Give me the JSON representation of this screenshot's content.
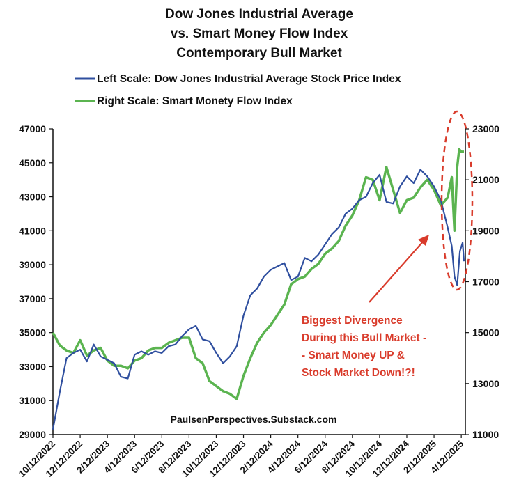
{
  "chart_data": {
    "type": "line",
    "title_lines": [
      "Dow Jones Industrial Average",
      "vs. Smart Money Flow Index",
      "Contemporary Bull Market"
    ],
    "legend": [
      {
        "label": "Left Scale: Dow Jones Industrial Average Stock Price Index",
        "color": "#2F4F9F"
      },
      {
        "label": "Right Scale: Smart Monety Flow Index",
        "color": "#5BB450"
      }
    ],
    "y_left": {
      "min": 29000,
      "max": 47000,
      "ticks": [
        "29000",
        "31000",
        "33000",
        "35000",
        "37000",
        "39000",
        "41000",
        "43000",
        "45000",
        "47000"
      ]
    },
    "y_right": {
      "min": 11000,
      "max": 23000,
      "ticks": [
        "11000",
        "13000",
        "15000",
        "17000",
        "19000",
        "21000",
        "23000"
      ]
    },
    "x_ticks": [
      "10/12/2022",
      "12/12/2022",
      "2/12/2023",
      "4/12/2023",
      "6/12/2023",
      "8/12/2023",
      "10/12/2023",
      "12/12/2023",
      "2/12/2024",
      "4/12/2024",
      "6/12/2024",
      "8/12/2024",
      "10/12/2024",
      "12/12/2024",
      "2/12/2025",
      "4/12/2025"
    ],
    "x_range": [
      0,
      30.3
    ],
    "series": [
      {
        "name": "Dow Jones Industrial Average",
        "axis": "left",
        "color": "#2F4F9F",
        "points": [
          [
            0,
            29300
          ],
          [
            0.5,
            31500
          ],
          [
            1,
            33500
          ],
          [
            1.5,
            33800
          ],
          [
            2,
            34000
          ],
          [
            2.5,
            33300
          ],
          [
            3,
            34300
          ],
          [
            3.5,
            33600
          ],
          [
            4,
            33400
          ],
          [
            4.5,
            33200
          ],
          [
            5,
            32400
          ],
          [
            5.5,
            32300
          ],
          [
            6,
            33700
          ],
          [
            6.5,
            33900
          ],
          [
            7,
            33700
          ],
          [
            7.5,
            33900
          ],
          [
            8,
            33800
          ],
          [
            8.5,
            34200
          ],
          [
            9,
            34300
          ],
          [
            9.5,
            34800
          ],
          [
            10,
            35200
          ],
          [
            10.5,
            35400
          ],
          [
            11,
            34600
          ],
          [
            11.5,
            34500
          ],
          [
            12,
            33800
          ],
          [
            12.5,
            33200
          ],
          [
            13,
            33600
          ],
          [
            13.5,
            34200
          ],
          [
            14,
            36000
          ],
          [
            14.5,
            37200
          ],
          [
            15,
            37600
          ],
          [
            15.5,
            38300
          ],
          [
            16,
            38700
          ],
          [
            16.5,
            38900
          ],
          [
            17,
            39100
          ],
          [
            17.5,
            38100
          ],
          [
            18,
            38300
          ],
          [
            18.5,
            39400
          ],
          [
            19,
            39200
          ],
          [
            19.5,
            39600
          ],
          [
            20,
            40200
          ],
          [
            20.5,
            40800
          ],
          [
            21,
            41200
          ],
          [
            21.5,
            42000
          ],
          [
            22,
            42300
          ],
          [
            22.5,
            42800
          ],
          [
            23,
            43000
          ],
          [
            23.5,
            43800
          ],
          [
            24,
            44300
          ],
          [
            24.5,
            42700
          ],
          [
            25,
            42600
          ],
          [
            25.5,
            43600
          ],
          [
            26,
            44200
          ],
          [
            26.5,
            43800
          ],
          [
            27,
            44600
          ],
          [
            27.5,
            44200
          ],
          [
            28,
            43600
          ],
          [
            28.5,
            42800
          ],
          [
            29,
            41200
          ],
          [
            29.3,
            40100
          ],
          [
            29.5,
            38300
          ],
          [
            29.7,
            37800
          ],
          [
            29.9,
            39800
          ],
          [
            30.1,
            40300
          ],
          [
            30.2,
            39200
          ]
        ]
      },
      {
        "name": "Smart Money Flow Index",
        "axis": "right",
        "color": "#5BB450",
        "points": [
          [
            0,
            15000
          ],
          [
            0.5,
            14500
          ],
          [
            1,
            14300
          ],
          [
            1.5,
            14200
          ],
          [
            2,
            14700
          ],
          [
            2.5,
            14100
          ],
          [
            3,
            14300
          ],
          [
            3.5,
            14400
          ],
          [
            4,
            13900
          ],
          [
            4.5,
            13700
          ],
          [
            5,
            13700
          ],
          [
            5.5,
            13600
          ],
          [
            6,
            13900
          ],
          [
            6.5,
            14000
          ],
          [
            7,
            14300
          ],
          [
            7.5,
            14400
          ],
          [
            8,
            14400
          ],
          [
            8.5,
            14600
          ],
          [
            9,
            14700
          ],
          [
            9.5,
            14800
          ],
          [
            10,
            14800
          ],
          [
            10.5,
            14000
          ],
          [
            11,
            13800
          ],
          [
            11.5,
            13100
          ],
          [
            12,
            12900
          ],
          [
            12.5,
            12700
          ],
          [
            13,
            12600
          ],
          [
            13.5,
            12400
          ],
          [
            14,
            13300
          ],
          [
            14.5,
            14000
          ],
          [
            15,
            14600
          ],
          [
            15.5,
            15000
          ],
          [
            16,
            15300
          ],
          [
            16.5,
            15700
          ],
          [
            17,
            16100
          ],
          [
            17.5,
            16900
          ],
          [
            18,
            17100
          ],
          [
            18.5,
            17200
          ],
          [
            19,
            17500
          ],
          [
            19.5,
            17700
          ],
          [
            20,
            18100
          ],
          [
            20.5,
            18300
          ],
          [
            21,
            18600
          ],
          [
            21.5,
            19200
          ],
          [
            22,
            19600
          ],
          [
            22.5,
            20200
          ],
          [
            23,
            21100
          ],
          [
            23.5,
            21000
          ],
          [
            24,
            20200
          ],
          [
            24.5,
            21500
          ],
          [
            25,
            20600
          ],
          [
            25.5,
            19700
          ],
          [
            26,
            20200
          ],
          [
            26.5,
            20300
          ],
          [
            27,
            20700
          ],
          [
            27.5,
            21000
          ],
          [
            28,
            20600
          ],
          [
            28.5,
            20000
          ],
          [
            29,
            20300
          ],
          [
            29.3,
            21100
          ],
          [
            29.5,
            19000
          ],
          [
            29.7,
            21500
          ],
          [
            29.85,
            22200
          ],
          [
            30.0,
            22100
          ],
          [
            30.2,
            22100
          ]
        ]
      }
    ],
    "annotation": {
      "lines": [
        "Biggest Divergence",
        "During this Bull Market -",
        "- Smart Money UP &",
        "Stock Market Down!?!"
      ],
      "color": "#D93B2B"
    },
    "source": "PaulsenPerspectives.Substack.com"
  }
}
